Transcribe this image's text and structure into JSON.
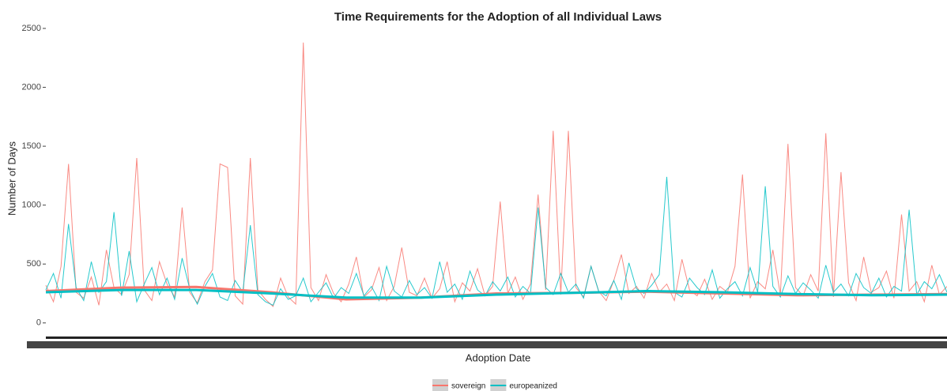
{
  "chart_data": {
    "type": "line",
    "title": "Time Requirements for the Adoption of all Individual Laws",
    "xlabel": "Adoption Date",
    "ylabel": "Number of Days",
    "categories": [
      null,
      null,
      null,
      null,
      null,
      null,
      null,
      null,
      null,
      null,
      null,
      null,
      null,
      null,
      null,
      null,
      null,
      null,
      null,
      null,
      null,
      null,
      null,
      null,
      null,
      null,
      null,
      null,
      null,
      null,
      null,
      null,
      null,
      null,
      null,
      null,
      null,
      null,
      null,
      null,
      null,
      null,
      null,
      null,
      null,
      null,
      null,
      null,
      null,
      null,
      null,
      null,
      null,
      null,
      null,
      null,
      null,
      null,
      null,
      null,
      null,
      null,
      null,
      null,
      null,
      null,
      null,
      null,
      null,
      null,
      null,
      null,
      null,
      null,
      null,
      null,
      null,
      null,
      null,
      null,
      null,
      null,
      null,
      null,
      null,
      null,
      null,
      null,
      null,
      null,
      null,
      null,
      null,
      null,
      null,
      null,
      null,
      null,
      null,
      null,
      null,
      null,
      null,
      null,
      null,
      null,
      null,
      null,
      null,
      null,
      null,
      null,
      null,
      null,
      null,
      null,
      null,
      null,
      null,
      null
    ],
    "series": [
      {
        "name": "sovereign",
        "color": "#f8766d",
        "values": [
          320,
          180,
          480,
          1350,
          260,
          210,
          390,
          150,
          620,
          300,
          240,
          410,
          1400,
          280,
          190,
          520,
          330,
          220,
          980,
          260,
          170,
          350,
          450,
          1350,
          1320,
          230,
          160,
          1400,
          280,
          200,
          140,
          380,
          220,
          160,
          2380,
          300,
          190,
          410,
          250,
          180,
          330,
          560,
          220,
          280,
          470,
          190,
          310,
          640,
          260,
          230,
          380,
          210,
          290,
          520,
          180,
          340,
          270,
          460,
          230,
          310,
          1030,
          250,
          390,
          200,
          330,
          1090,
          280,
          1630,
          240,
          1630,
          300,
          220,
          480,
          270,
          190,
          360,
          580,
          250,
          310,
          210,
          420,
          260,
          330,
          190,
          540,
          280,
          230,
          370,
          200,
          310,
          260,
          480,
          1260,
          210,
          350,
          290,
          620,
          240,
          1520,
          300,
          230,
          410,
          270,
          1610,
          220,
          1280,
          340,
          190,
          560,
          260,
          300,
          440,
          210,
          920,
          270,
          350,
          180,
          490,
          240,
          310
        ],
        "smooth": [
          270,
          300,
          305,
          260,
          200,
          215,
          250,
          255,
          265,
          250,
          235,
          240,
          245
        ]
      },
      {
        "name": "europeanized",
        "color": "#00bfc4",
        "values": [
          280,
          420,
          210,
          840,
          300,
          190,
          520,
          260,
          350,
          940,
          230,
          610,
          180,
          330,
          470,
          240,
          380,
          200,
          550,
          290,
          160,
          310,
          420,
          220,
          190,
          360,
          260,
          830,
          240,
          180,
          150,
          290,
          200,
          230,
          380,
          180,
          260,
          340,
          210,
          300,
          250,
          420,
          230,
          310,
          190,
          480,
          270,
          220,
          360,
          240,
          300,
          210,
          520,
          260,
          330,
          200,
          440,
          280,
          230,
          350,
          270,
          390,
          220,
          310,
          250,
          980,
          300,
          240,
          420,
          260,
          330,
          210,
          480,
          270,
          230,
          360,
          200,
          510,
          290,
          250,
          320,
          410,
          1240,
          260,
          220,
          380,
          300,
          240,
          450,
          210,
          290,
          350,
          230,
          470,
          260,
          1160,
          310,
          220,
          400,
          250,
          340,
          280,
          210,
          490,
          260,
          330,
          230,
          420,
          300,
          250,
          380,
          220,
          310,
          270,
          960,
          240,
          350,
          290,
          410,
          260
        ],
        "smooth": [
          260,
          280,
          280,
          250,
          215,
          215,
          240,
          255,
          270,
          260,
          245,
          235,
          240
        ]
      }
    ],
    "ylim": [
      -75,
      2530
    ],
    "yticks": [
      0,
      500,
      1000,
      1500,
      2000,
      2500
    ],
    "grid": false,
    "legend": "bottom"
  }
}
